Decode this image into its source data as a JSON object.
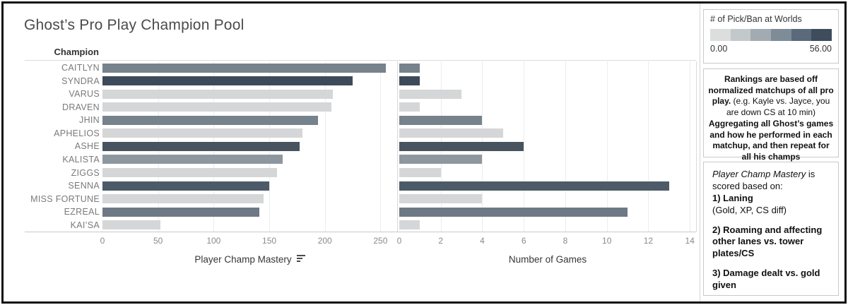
{
  "title": "Ghost’s Pro Play Champion Pool",
  "row_header": "Champion",
  "chart_data": {
    "type": "bar",
    "orientation": "horizontal",
    "categories": [
      "CAITLYN",
      "SYNDRA",
      "VARUS",
      "DRAVEN",
      "JHIN",
      "APHELIOS",
      "ASHE",
      "KALISTA",
      "ZIGGS",
      "SENNA",
      "MISS FORTUNE",
      "EZREAL",
      "KAI’SA"
    ],
    "series": [
      {
        "name": "Player Champ Mastery",
        "values": [
          255,
          225,
          207,
          206,
          194,
          180,
          177,
          162,
          157,
          150,
          145,
          141,
          52
        ],
        "xlim": [
          0,
          265
        ],
        "ticks": [
          0,
          50,
          100,
          150,
          200,
          250
        ]
      },
      {
        "name": "Number of Games",
        "values": [
          1,
          1,
          3,
          1,
          4,
          5,
          6,
          4,
          2,
          13,
          4,
          11,
          1
        ],
        "xlim": [
          0,
          14.3
        ],
        "ticks": [
          0,
          2,
          4,
          6,
          8,
          10,
          12,
          14
        ]
      }
    ],
    "color_encoding": {
      "field": "# of Pick/Ban at Worlds",
      "bar_colors": [
        "#76828c",
        "#3d4a59",
        "#d5d6d7",
        "#d5d6d7",
        "#76828c",
        "#d5d6d7",
        "#47545f",
        "#8d97a0",
        "#d5d6d7",
        "#4d5a67",
        "#d5d6d7",
        "#6d7984",
        "#d5d6d7"
      ]
    },
    "grid": true,
    "legend_position": "top-right",
    "sort_indicator": "descending on Player Champ Mastery"
  },
  "legend": {
    "title": "# of Pick/Ban at Worlds",
    "min_label": "0.00",
    "max_label": "56.00",
    "steps": [
      "#dcdddd",
      "#c3c8ca",
      "#a2abb1",
      "#7e8c97",
      "#5a6a7a",
      "#3e4c5b"
    ]
  },
  "notes": {
    "rankings": [
      {
        "text": "Rankings are based off normalized matchups of all pro play. ",
        "bold": true
      },
      {
        "text": "(e.g. Kayle vs. Jayce, you are down CS at 10 min) ",
        "bold": false
      },
      {
        "text": "Aggregating all Ghost’s games and how he performed in each matchup, and then repeat for all his champs",
        "bold": true
      }
    ],
    "mastery": [
      {
        "segments": [
          {
            "text": "Player Champ Mastery",
            "italic": true
          },
          {
            "text": " is scored based on:"
          }
        ]
      },
      {
        "segments": [
          {
            "text": "1) Laning",
            "bold": true
          }
        ]
      },
      {
        "segments": [
          {
            "text": "(Gold, XP, CS diff)"
          }
        ]
      },
      {
        "segments": [
          {
            "text": ""
          }
        ]
      },
      {
        "segments": [
          {
            "text": "2) Roaming and affecting other lanes vs. tower plates/CS",
            "bold": true
          }
        ]
      },
      {
        "segments": [
          {
            "text": ""
          }
        ]
      },
      {
        "segments": [
          {
            "text": "3) Damage dealt vs. gold given",
            "bold": true
          }
        ]
      }
    ]
  }
}
